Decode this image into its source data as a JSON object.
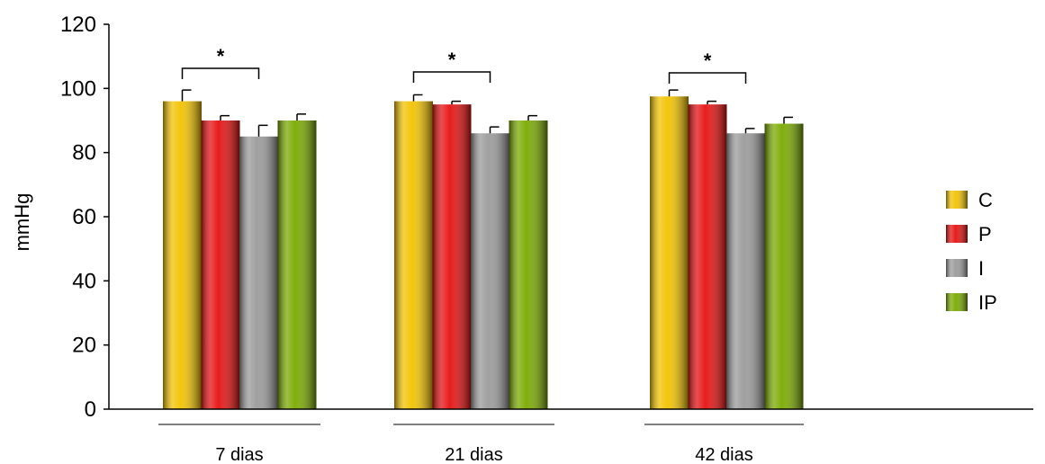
{
  "chart_data": {
    "type": "bar",
    "title": "",
    "xlabel": "",
    "ylabel": "mmHg",
    "ylim": [
      0,
      120
    ],
    "yticks": [
      0,
      20,
      40,
      60,
      80,
      100,
      120
    ],
    "categories": [
      "7 dias",
      "21 dias",
      "42 dias"
    ],
    "series": [
      {
        "name": "C",
        "values": [
          96,
          96,
          97.5
        ],
        "errors": [
          3.5,
          2,
          2
        ],
        "color": "#f2c300"
      },
      {
        "name": "P",
        "values": [
          90,
          95,
          95
        ],
        "errors": [
          1.5,
          1,
          1
        ],
        "color": "#e61010"
      },
      {
        "name": "I",
        "values": [
          85,
          86,
          86
        ],
        "errors": [
          3.5,
          2,
          1.5
        ],
        "color": "#9a9a9a"
      },
      {
        "name": "IP",
        "values": [
          90,
          90,
          89
        ],
        "errors": [
          2,
          1.5,
          2
        ],
        "color": "#7aaa00"
      }
    ],
    "significance": [
      {
        "category_index": 0,
        "from_series": 0,
        "to_series": 2,
        "label": "*"
      },
      {
        "category_index": 1,
        "from_series": 0,
        "to_series": 2,
        "label": "*"
      },
      {
        "category_index": 2,
        "from_series": 0,
        "to_series": 2,
        "label": "*"
      }
    ],
    "grid": false,
    "legend_position": "right"
  }
}
